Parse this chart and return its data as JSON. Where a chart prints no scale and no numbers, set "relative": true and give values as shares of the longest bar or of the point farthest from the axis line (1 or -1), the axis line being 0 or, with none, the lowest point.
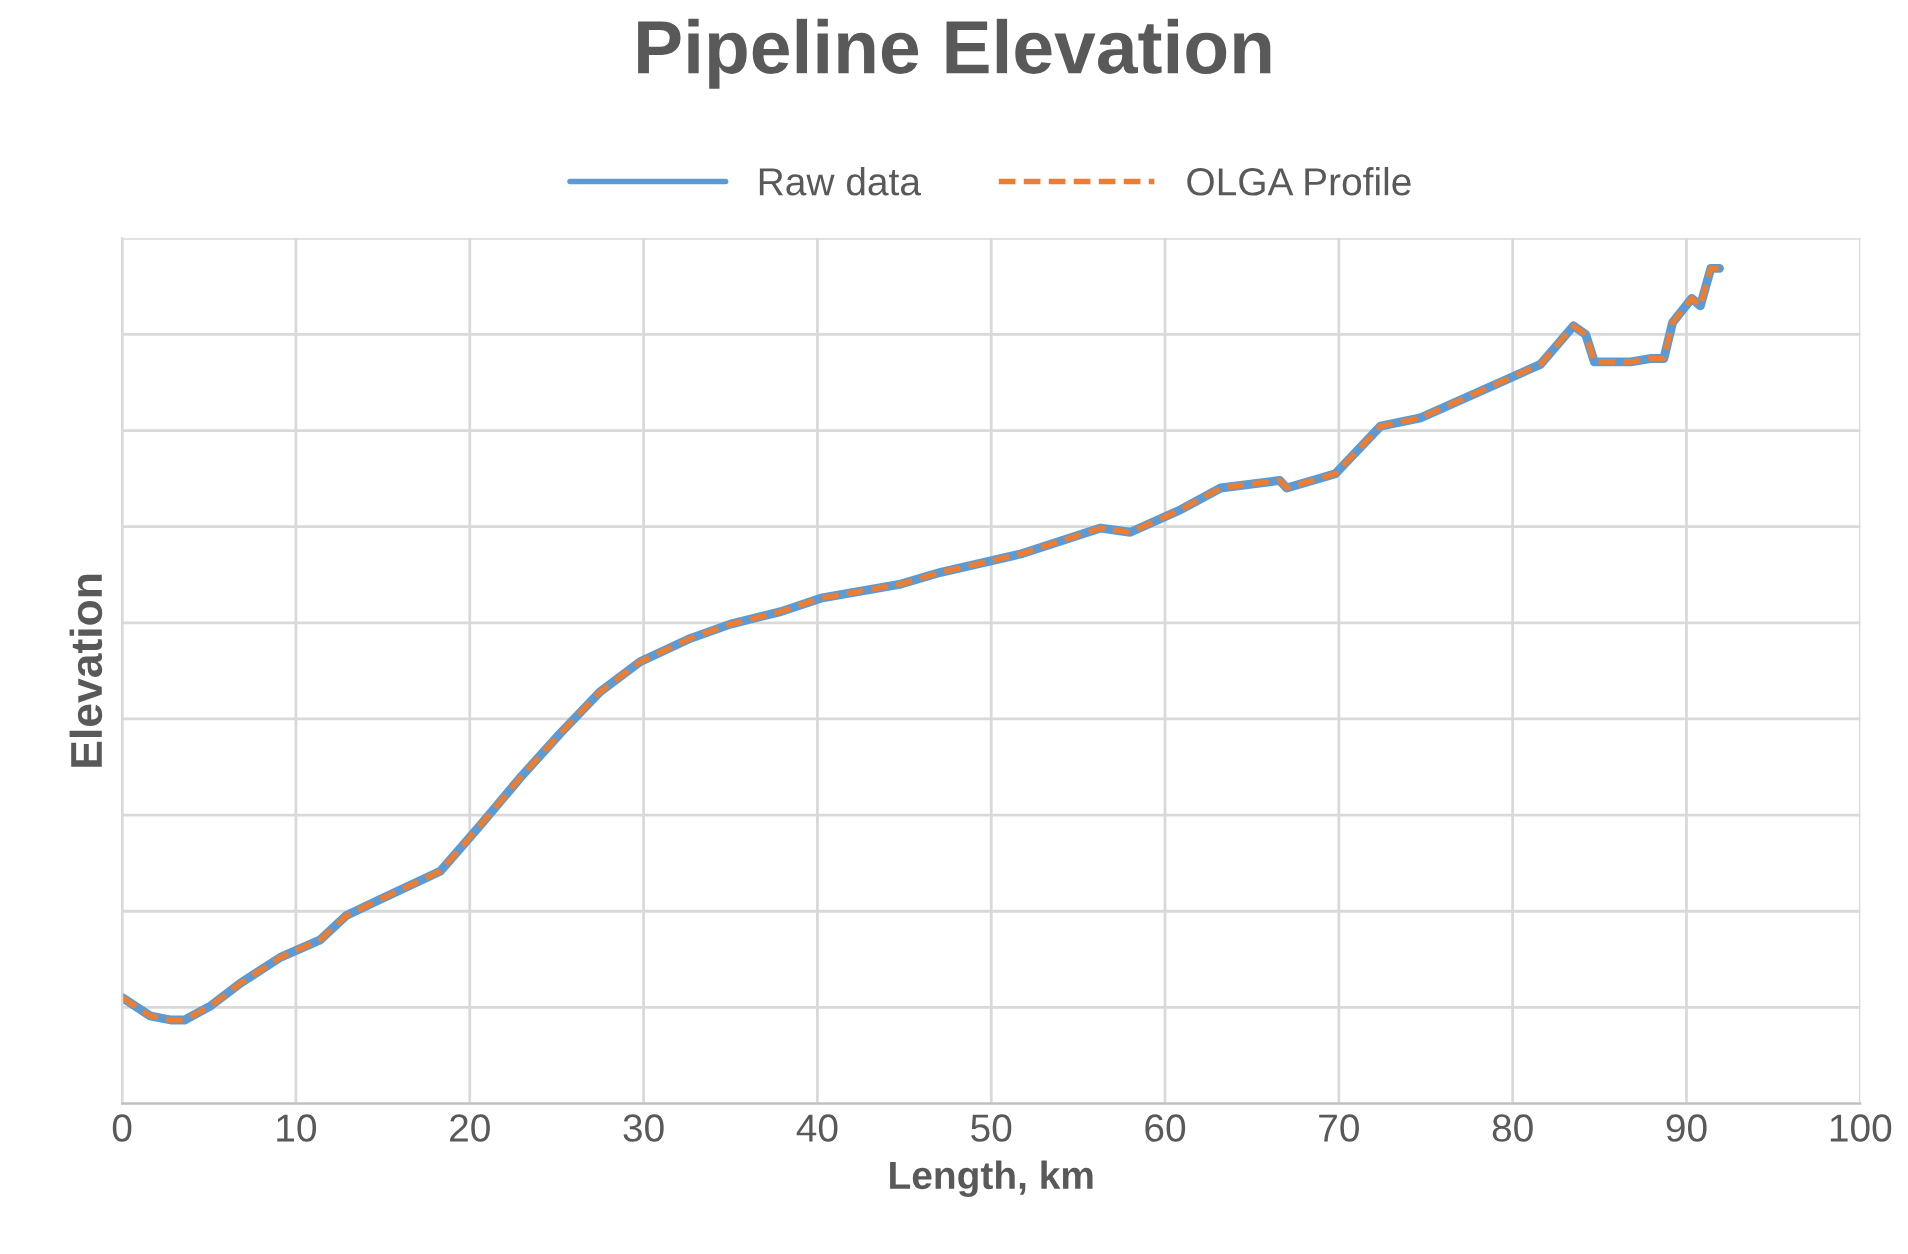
{
  "chart_data": {
    "type": "line",
    "title": "Pipeline Elevation",
    "xlabel": "Length, km",
    "ylabel": "Elevation",
    "relative": true,
    "x": [
      0,
      1.6,
      2.8,
      3.6,
      5.1,
      6.8,
      9.1,
      11.4,
      12.9,
      14.8,
      18.3,
      20.6,
      22.9,
      25.2,
      27.5,
      29.8,
      32.7,
      35,
      37.9,
      40.2,
      44.8,
      47.1,
      51.7,
      56.3,
      58,
      60.9,
      63.2,
      66.6,
      67,
      69.8,
      72.4,
      74.7,
      81.6,
      83.5,
      84.2,
      84.7,
      86.8,
      87.9,
      88.7,
      89.2,
      90.3,
      90.8,
      91.4,
      91.9
    ],
    "series": [
      {
        "name": "Raw data",
        "color": "#5b9bd5",
        "line_style": "solid",
        "values": [
          0.127,
          0.105,
          0.1,
          0.1,
          0.117,
          0.144,
          0.175,
          0.196,
          0.225,
          0.244,
          0.278,
          0.333,
          0.39,
          0.443,
          0.493,
          0.529,
          0.557,
          0.574,
          0.589,
          0.605,
          0.622,
          0.636,
          0.658,
          0.689,
          0.684,
          0.711,
          0.737,
          0.746,
          0.737,
          0.754,
          0.811,
          0.821,
          0.885,
          0.931,
          0.921,
          0.888,
          0.888,
          0.892,
          0.892,
          0.935,
          0.964,
          0.955,
          1.0,
          1.0
        ]
      },
      {
        "name": "OLGA Profile",
        "color": "#ed7d31",
        "line_style": "dashed",
        "values": [
          0.127,
          0.105,
          0.1,
          0.1,
          0.117,
          0.144,
          0.175,
          0.196,
          0.225,
          0.244,
          0.278,
          0.333,
          0.39,
          0.443,
          0.493,
          0.529,
          0.557,
          0.574,
          0.589,
          0.605,
          0.622,
          0.636,
          0.658,
          0.689,
          0.684,
          0.711,
          0.737,
          0.746,
          0.737,
          0.754,
          0.811,
          0.821,
          0.885,
          0.931,
          0.921,
          0.888,
          0.888,
          0.892,
          0.892,
          0.935,
          0.964,
          0.955,
          1.0,
          1.0
        ]
      }
    ],
    "xlim": [
      0,
      100
    ],
    "xticks": [
      0,
      10,
      20,
      30,
      40,
      50,
      60,
      70,
      80,
      90,
      100
    ],
    "tick_labels": "x",
    "grid": true,
    "legend": "top",
    "marker": "none"
  }
}
